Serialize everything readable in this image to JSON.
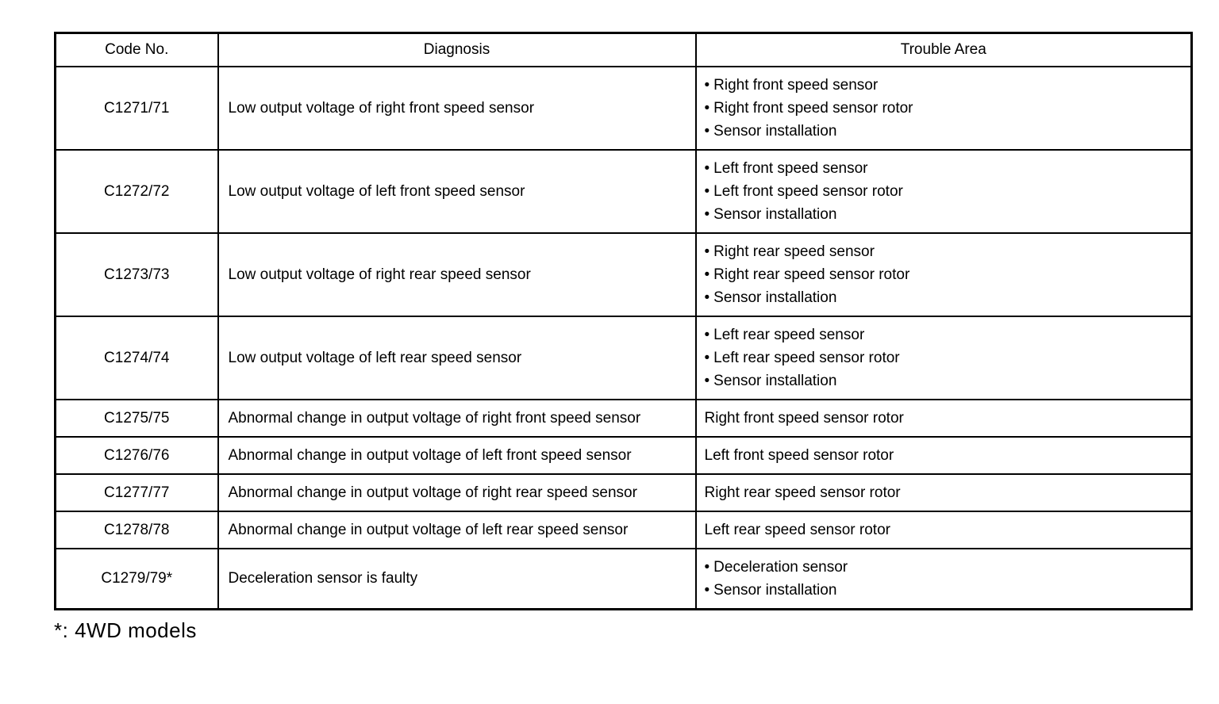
{
  "table": {
    "headers": [
      "Code No.",
      "Diagnosis",
      "Trouble Area"
    ],
    "rows": [
      {
        "code": "C1271/71",
        "diagnosis": "Low output voltage of right front speed sensor",
        "trouble": [
          "Right front speed sensor",
          "Right front speed sensor rotor",
          "Sensor installation"
        ]
      },
      {
        "code": "C1272/72",
        "diagnosis": "Low output voltage of left front speed sensor",
        "trouble": [
          "Left front speed sensor",
          "Left front speed sensor rotor",
          "Sensor installation"
        ]
      },
      {
        "code": "C1273/73",
        "diagnosis": "Low output voltage of right rear speed sensor",
        "trouble": [
          "Right rear speed sensor",
          "Right rear speed sensor rotor",
          "Sensor installation"
        ]
      },
      {
        "code": "C1274/74",
        "diagnosis": "Low output voltage of left rear speed sensor",
        "trouble": [
          "Left rear speed sensor",
          "Left rear speed sensor rotor",
          "Sensor installation"
        ]
      },
      {
        "code": "C1275/75",
        "diagnosis": "Abnormal change in output voltage of right front speed sensor",
        "trouble": [
          "Right front speed sensor rotor"
        ]
      },
      {
        "code": "C1276/76",
        "diagnosis": "Abnormal change in output voltage of left front speed sensor",
        "trouble": [
          "Left front speed sensor rotor"
        ]
      },
      {
        "code": "C1277/77",
        "diagnosis": "Abnormal change in output voltage of right rear speed sensor",
        "trouble": [
          "Right rear speed sensor rotor"
        ]
      },
      {
        "code": "C1278/78",
        "diagnosis": "Abnormal change in output voltage of left rear speed sensor",
        "trouble": [
          "Left rear speed sensor rotor"
        ]
      },
      {
        "code": "C1279/79*",
        "diagnosis": "Deceleration sensor is faulty",
        "trouble": [
          "Deceleration sensor",
          "Sensor installation"
        ]
      }
    ]
  },
  "footnote": "*: 4WD models"
}
